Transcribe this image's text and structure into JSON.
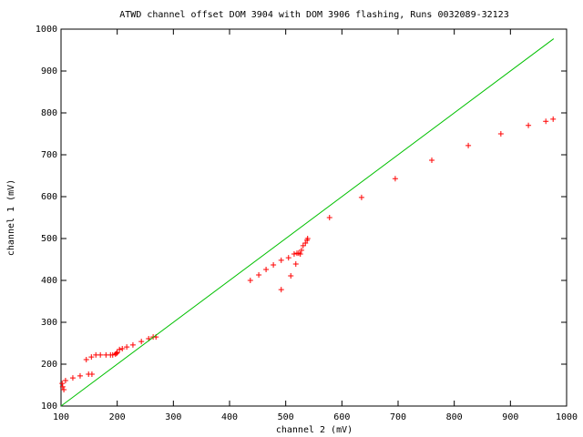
{
  "chart_data": {
    "type": "scatter",
    "title": "ATWD channel offset DOM 3904 with DOM 3906 flashing, Runs 0032089-32123",
    "x_label": "channel 2 (mV)",
    "y_label": "channel 1 (mV)",
    "xlim": [
      100,
      1000
    ],
    "ylim": [
      100,
      1000
    ],
    "xticks": [
      100,
      200,
      300,
      400,
      500,
      600,
      700,
      800,
      900,
      1000
    ],
    "yticks": [
      100,
      200,
      300,
      400,
      500,
      600,
      700,
      800,
      900,
      1000
    ],
    "grid": false,
    "series": [
      {
        "type": "scatter",
        "color": "#ff0000",
        "x": [
          102,
          103,
          105,
          108,
          121,
          134,
          145,
          149,
          154,
          155,
          162,
          170,
          180,
          188,
          192,
          197,
          199,
          200,
          204,
          209,
          217,
          228,
          243,
          256,
          264,
          269,
          437,
          452,
          465,
          478,
          492,
          492,
          505,
          509,
          515,
          518,
          520,
          523,
          526,
          528,
          531,
          535,
          538,
          539,
          578,
          635,
          695,
          760,
          825,
          883,
          932,
          963,
          976
        ],
        "values": [
          154,
          146,
          139,
          161,
          167,
          172,
          211,
          176,
          217,
          176,
          222,
          222,
          222,
          222,
          222,
          224,
          226,
          228,
          235,
          237,
          241,
          246,
          254,
          261,
          265,
          265,
          400,
          413,
          426,
          437,
          448,
          378,
          454,
          411,
          463,
          439,
          465,
          465,
          463,
          472,
          483,
          489,
          496,
          500,
          550,
          598,
          643,
          687,
          722,
          750,
          770,
          780,
          785
        ]
      },
      {
        "type": "line",
        "color": "#00c000",
        "x": [
          100,
          977
        ],
        "values": [
          100,
          977
        ]
      }
    ]
  }
}
